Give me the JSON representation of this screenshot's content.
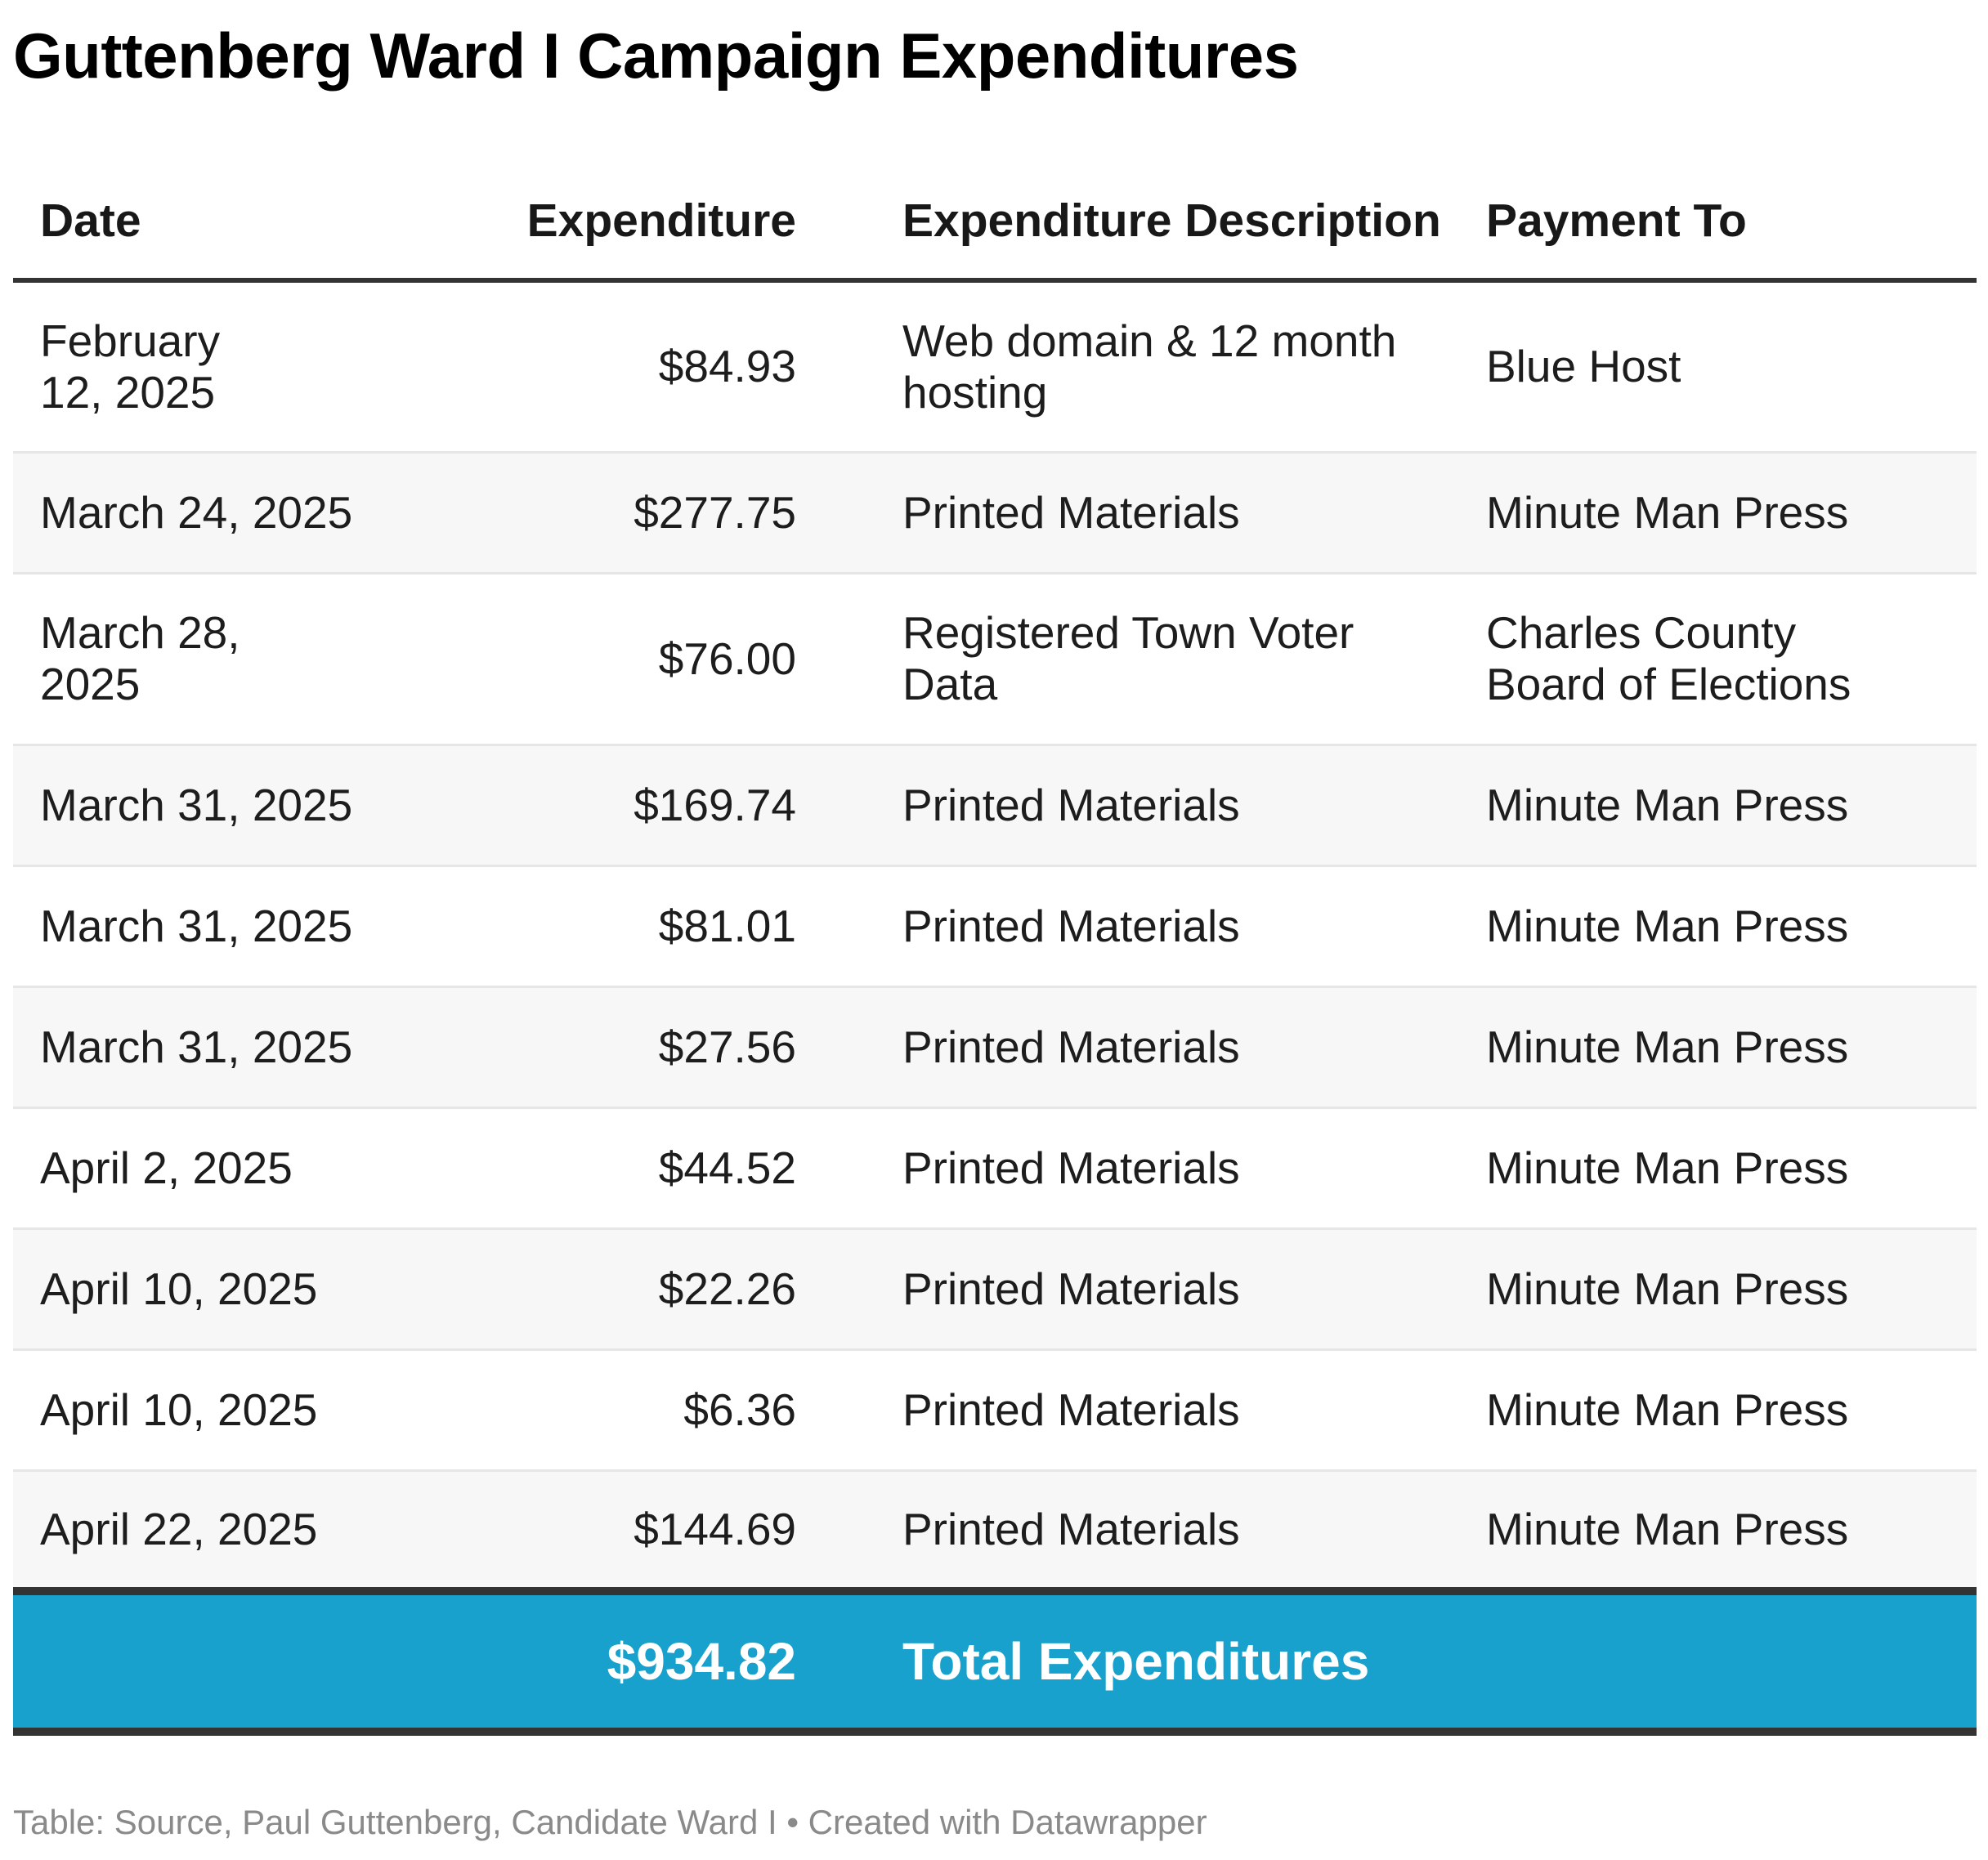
{
  "title": "Guttenberg Ward I Campaign Expenditures",
  "footer": "Table: Source, Paul Guttenberg, Candidate Ward I • Created with Datawrapper",
  "colors": {
    "total_band": "#18a1cd",
    "rule": "#333333",
    "stripe": "#f7f7f7"
  },
  "chart_data": {
    "type": "table",
    "title": "Guttenberg Ward I Campaign Expenditures",
    "columns": [
      "Date",
      "Expenditure",
      "Expenditure Description",
      "Payment To"
    ],
    "rows": [
      [
        "February 12, 2025",
        "$84.93",
        "Web domain & 12 month hosting",
        "Blue Host"
      ],
      [
        "March 24, 2025",
        "$277.75",
        "Printed Materials",
        "Minute Man Press"
      ],
      [
        "March 28, 2025",
        "$76.00",
        "Registered Town Voter Data",
        "Charles County Board of Elections"
      ],
      [
        "March 31, 2025",
        "$169.74",
        "Printed Materials",
        "Minute Man Press"
      ],
      [
        "March 31, 2025",
        "$81.01",
        "Printed Materials",
        "Minute Man Press"
      ],
      [
        "March 31, 2025",
        "$27.56",
        "Printed Materials",
        "Minute Man Press"
      ],
      [
        "April 2, 2025",
        "$44.52",
        "Printed Materials",
        "Minute Man Press"
      ],
      [
        "April 10, 2025",
        "$22.26",
        "Printed Materials",
        "Minute Man Press"
      ],
      [
        "April 10, 2025",
        "$6.36",
        "Printed Materials",
        "Minute Man Press"
      ],
      [
        "April 22, 2025",
        "$144.69",
        "Printed Materials",
        "Minute Man Press"
      ]
    ],
    "total": {
      "amount": "$934.82",
      "label": "Total Expenditures"
    }
  }
}
